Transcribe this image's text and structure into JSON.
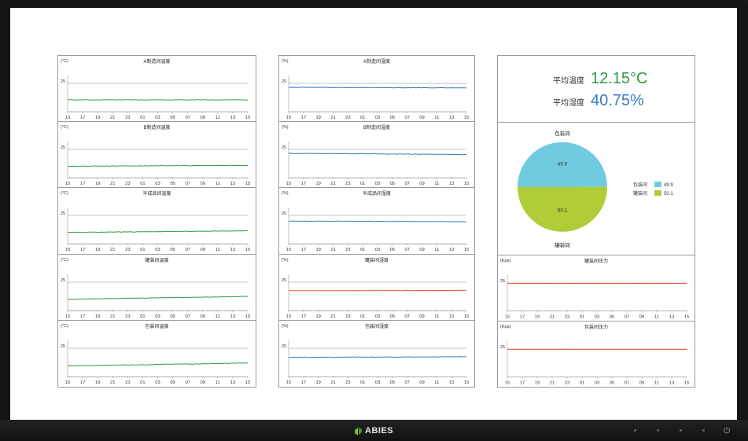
{
  "brand": {
    "name": "ABIES"
  },
  "colors": {
    "green": "#2e9a46",
    "blue": "#3a7ac6",
    "red": "#e8593f",
    "pie_top": "#6fcbe0",
    "pie_bottom": "#aecd37",
    "axis": "#9a9a9a"
  },
  "time_ticks": [
    "15",
    "17",
    "19",
    "21",
    "23",
    "01",
    "03",
    "05",
    "07",
    "09",
    "11",
    "13",
    "15"
  ],
  "left_charts": [
    {
      "title": "A制造间温度",
      "unit": "(°C)",
      "ref": "25",
      "color": "green",
      "series": {
        "start": 10.5,
        "end": 10.5,
        "noise": 0.18
      }
    },
    {
      "title": "B制造间温度",
      "unit": "(°C)",
      "ref": "25",
      "color": "green",
      "series": {
        "start": 10.2,
        "end": 11.0,
        "noise": 0.2
      }
    },
    {
      "title": "半成品间温度",
      "unit": "(°C)",
      "ref": "25",
      "color": "green",
      "series": {
        "start": 10.0,
        "end": 11.5,
        "noise": 0.18
      }
    },
    {
      "title": "罐装间温度",
      "unit": "(°C)",
      "ref": "25",
      "color": "green",
      "series": {
        "start": 10.0,
        "end": 12.5,
        "noise": 0.2
      }
    },
    {
      "title": "包装间温度",
      "unit": "(°C)",
      "ref": "25",
      "color": "green",
      "series": {
        "start": 9.5,
        "end": 12.0,
        "noise": 0.25
      }
    }
  ],
  "mid_charts": [
    {
      "title": "A制造间湿度",
      "unit": "(%)",
      "ref": "25",
      "color": "blue",
      "series": {
        "start": 21.5,
        "end": 21.0,
        "noise": 0.15
      }
    },
    {
      "title": "B制造间湿度",
      "unit": "(%)",
      "ref": "25",
      "color": "blue",
      "series": {
        "start": 21.5,
        "end": 20.5,
        "noise": 0.2
      }
    },
    {
      "title": "半成品间湿度",
      "unit": "(%)",
      "ref": "25",
      "color": "blue",
      "series": {
        "start": 20.0,
        "end": 19.5,
        "noise": 0.12
      }
    },
    {
      "title": "罐装间湿度",
      "unit": "(%)",
      "ref": "25",
      "color": "red",
      "series": {
        "start": 17.5,
        "end": 17.8,
        "noise": 0.1
      }
    },
    {
      "title": "包装间湿度",
      "unit": "(%)",
      "ref": "25",
      "color": "blue",
      "series": {
        "start": 17.0,
        "end": 17.5,
        "noise": 0.2
      }
    }
  ],
  "kpi": {
    "temp_label": "平均温度",
    "temp_value": "12.15°C",
    "hum_label": "平均湿度",
    "hum_value": "40.75%"
  },
  "chart_data": {
    "type": "pie",
    "title": "包装间",
    "bottom_label": "罐装间",
    "slices": [
      {
        "name": "包装间",
        "value": 49.9,
        "label": "49.9"
      },
      {
        "name": "罐装间",
        "value": 50.1,
        "label": "50.1"
      }
    ]
  },
  "pressure_charts": [
    {
      "title": "罐装间压力",
      "unit": "(Kpa)",
      "ref": "25",
      "color": "red",
      "series": {
        "start": 24.6,
        "end": 24.6,
        "noise": 0.05
      }
    },
    {
      "title": "包装间压力",
      "unit": "(Kpa)",
      "ref": "25",
      "color": "red",
      "series": {
        "start": 24.7,
        "end": 24.7,
        "noise": 0.03
      }
    }
  ]
}
